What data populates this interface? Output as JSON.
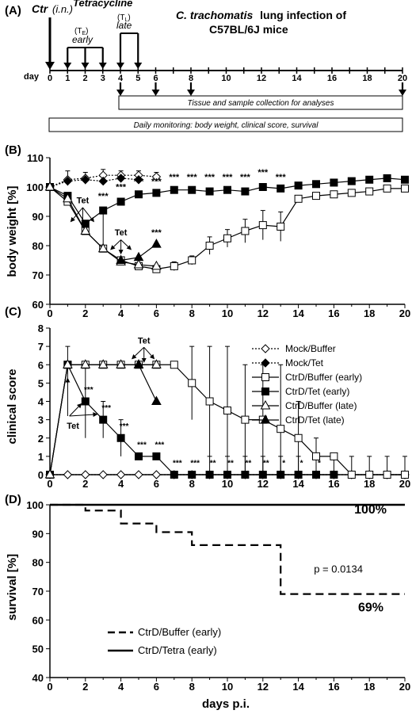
{
  "panel_a": {
    "label": "(A)",
    "ctr": "Ctr",
    "ctr_route": "(i.n.)",
    "tetracycline": "Tetracycline",
    "te": "(T",
    "te_sub": "E",
    "te_close": ")",
    "early": "early",
    "tl": "(T",
    "tl_sub": "L",
    "tl_close": ")",
    "late": "late",
    "title_species": "C. trachomatis",
    "title_rest": "lung infection of",
    "title_line2": "C57BL/6J mice",
    "day_label": "day",
    "days": [
      "0",
      "1",
      "2",
      "3",
      "4",
      "5",
      "6",
      "8",
      "10",
      "12",
      "14",
      "16",
      "18",
      "20"
    ],
    "box1": "Tissue and sample collection for analyses",
    "box2": "Daily monitoring:  body weight, clinical score, survival"
  },
  "chart_data": [
    {
      "panel": "(B)",
      "type": "line",
      "ylabel": "body weight [%]",
      "xlim": [
        0,
        20
      ],
      "ylim": [
        60,
        110
      ],
      "xticks": [
        "0",
        "2",
        "4",
        "6",
        "8",
        "10",
        "12",
        "14",
        "16",
        "18",
        "20"
      ],
      "yticks": [
        "60",
        "70",
        "80",
        "90",
        "100",
        "110"
      ],
      "series": [
        {
          "marker": "diamond-open",
          "line": "dotted",
          "x": [
            0,
            1,
            2,
            3,
            4,
            5,
            6
          ],
          "y": [
            100,
            102.5,
            103,
            104,
            104,
            104,
            103.5
          ]
        },
        {
          "marker": "diamond-filled",
          "line": "dotted",
          "x": [
            0,
            1,
            2,
            3,
            4,
            5
          ],
          "y": [
            100,
            102,
            102.5,
            102,
            103,
            102.5
          ]
        },
        {
          "marker": "square-open",
          "line": "solid",
          "x": [
            0,
            1,
            2,
            3,
            4,
            5,
            6,
            7,
            8,
            9,
            10,
            11,
            12,
            13,
            14,
            15,
            16,
            17,
            18,
            19,
            20
          ],
          "y": [
            100,
            95,
            85,
            79,
            75,
            73,
            72,
            73,
            75,
            80,
            82.5,
            85,
            87,
            86.5,
            96,
            97,
            97.5,
            98,
            98.5,
            99.5,
            99.5
          ]
        },
        {
          "marker": "square-filled",
          "line": "solid",
          "x": [
            0,
            1,
            2,
            3,
            4,
            5,
            6,
            7,
            8,
            9,
            10,
            11,
            12,
            13,
            14,
            15,
            16,
            17,
            18,
            19,
            20
          ],
          "y": [
            100,
            97,
            87.5,
            92,
            95,
            97.5,
            98,
            99,
            99,
            98.5,
            99,
            98.5,
            100,
            99.5,
            100.5,
            101,
            101.5,
            102,
            102.5,
            103,
            102.5
          ]
        },
        {
          "marker": "triangle-open",
          "line": "solid",
          "x": [
            0,
            1,
            2,
            3,
            4,
            5,
            6
          ],
          "y": [
            100,
            96,
            85,
            79,
            74.5,
            73.5,
            73
          ]
        },
        {
          "marker": "triangle-filled",
          "line": "solid",
          "x": [
            4,
            5,
            6
          ],
          "y": [
            75,
            76,
            80.5
          ]
        }
      ],
      "stars": [
        {
          "x": 3,
          "y": 96,
          "t": "***"
        },
        {
          "x": 4,
          "y": 99,
          "t": "***"
        },
        {
          "x": 5,
          "y": 101,
          "t": "***"
        },
        {
          "x": 6,
          "y": 101,
          "t": "***"
        },
        {
          "x": 7,
          "y": 102.5,
          "t": "***"
        },
        {
          "x": 8,
          "y": 102.5,
          "t": "***"
        },
        {
          "x": 9,
          "y": 102.5,
          "t": "***"
        },
        {
          "x": 10,
          "y": 102.5,
          "t": "***"
        },
        {
          "x": 11,
          "y": 102.5,
          "t": "***"
        },
        {
          "x": 12,
          "y": 104,
          "t": "***"
        },
        {
          "x": 13,
          "y": 102.5,
          "t": "***"
        },
        {
          "x": 6,
          "y": 83.5,
          "t": "***"
        }
      ],
      "annotations": [
        "Tet",
        "Tet"
      ]
    },
    {
      "panel": "(C)",
      "type": "line",
      "ylabel": "clinical score",
      "xlim": [
        0,
        20
      ],
      "ylim": [
        0,
        8
      ],
      "xticks": [
        "0",
        "2",
        "4",
        "6",
        "8",
        "10",
        "12",
        "14",
        "16",
        "18",
        "20"
      ],
      "yticks": [
        "0",
        "1",
        "2",
        "3",
        "4",
        "5",
        "6",
        "7",
        "8"
      ],
      "legend": [
        "Mock/Buffer",
        "Mock/Tet",
        "CtrD/Buffer (early)",
        "CtrD/Tet (early)",
        "CtrD/Buffer (late)",
        "CtrD/Tet (late)"
      ],
      "series": [
        {
          "name": "Mock/Buffer",
          "marker": "diamond-open",
          "line": "dotted",
          "x": [
            0,
            1,
            2,
            3,
            4,
            5,
            6,
            7,
            8,
            9,
            10,
            11,
            12,
            13,
            14,
            15,
            16,
            17,
            18,
            19,
            20
          ],
          "y": [
            0,
            0,
            0,
            0,
            0,
            0,
            0,
            0,
            0,
            0,
            0,
            0,
            0,
            0,
            0,
            0,
            0,
            0,
            0,
            0,
            0
          ]
        },
        {
          "name": "CtrD/Buffer (early)",
          "marker": "square-open",
          "line": "solid",
          "x": [
            0,
            1,
            2,
            3,
            4,
            5,
            6,
            7,
            8,
            9,
            10,
            11,
            12,
            13,
            14,
            15,
            16,
            17,
            18,
            19,
            20
          ],
          "y": [
            0,
            6,
            6,
            6,
            6,
            6,
            6,
            6,
            5,
            4,
            3.5,
            3,
            3,
            2.5,
            2,
            1,
            1,
            0,
            0,
            0,
            0
          ]
        },
        {
          "name": "CtrD/Tet (early)",
          "marker": "square-filled",
          "line": "solid",
          "x": [
            0,
            1,
            2,
            3,
            4,
            5,
            6,
            7,
            8,
            9,
            10,
            11,
            12,
            13,
            14,
            15,
            16
          ],
          "y": [
            0,
            6,
            4,
            3,
            2,
            1,
            1,
            0,
            0,
            0,
            0,
            0,
            0,
            0,
            0,
            0,
            0
          ]
        },
        {
          "name": "CtrD/Buffer (late)",
          "marker": "triangle-open",
          "line": "solid",
          "x": [
            0,
            1,
            2,
            3,
            4,
            5,
            6
          ],
          "y": [
            0,
            6,
            6,
            6,
            6,
            6,
            6
          ]
        },
        {
          "name": "CtrD/Tet (late)",
          "marker": "triangle-filled",
          "line": "solid",
          "x": [
            5,
            6
          ],
          "y": [
            6,
            4
          ]
        }
      ],
      "stars": [
        {
          "x": 2,
          "y": 4.5,
          "t": "***"
        },
        {
          "x": 3,
          "y": 3.5,
          "t": "***"
        },
        {
          "x": 4,
          "y": 2.5,
          "t": "***"
        },
        {
          "x": 5,
          "y": 1.5,
          "t": "***"
        },
        {
          "x": 6,
          "y": 1.5,
          "t": "***"
        },
        {
          "x": 7,
          "y": 0.5,
          "t": "***"
        },
        {
          "x": 8,
          "y": 0.5,
          "t": "***"
        },
        {
          "x": 9,
          "y": 0.5,
          "t": "**"
        },
        {
          "x": 10,
          "y": 0.5,
          "t": "**"
        },
        {
          "x": 11,
          "y": 0.5,
          "t": "**"
        },
        {
          "x": 12,
          "y": 0.5,
          "t": "**"
        },
        {
          "x": 13,
          "y": 0.5,
          "t": "*"
        },
        {
          "x": 14,
          "y": 0.5,
          "t": "*"
        },
        {
          "x": 15,
          "y": 0.5,
          "t": "*"
        }
      ],
      "annotations": [
        "Tet",
        "Tet"
      ]
    },
    {
      "panel": "(D)",
      "type": "line",
      "ylabel": "survival [%]",
      "xlabel": "days p.i.",
      "xlim": [
        0,
        20
      ],
      "ylim": [
        40,
        100
      ],
      "xticks": [
        "0",
        "2",
        "4",
        "6",
        "8",
        "10",
        "12",
        "14",
        "16",
        "18",
        "20"
      ],
      "yticks": [
        "40",
        "50",
        "60",
        "70",
        "80",
        "90",
        "100"
      ],
      "legend": [
        "CtrD/Buffer (early)",
        "CtrD/Tetra (early)"
      ],
      "series": [
        {
          "name": "CtrD/Buffer (early)",
          "line": "dashed",
          "step": true,
          "x": [
            0,
            2,
            4,
            6,
            8,
            13,
            20
          ],
          "y": [
            100,
            98,
            93.5,
            90.5,
            86,
            69,
            69
          ]
        },
        {
          "name": "CtrD/Tetra (early)",
          "line": "solid",
          "step": true,
          "x": [
            0,
            20
          ],
          "y": [
            100,
            100
          ]
        }
      ],
      "labels": {
        "top": "100%",
        "bottom": "69%",
        "p": "p = 0.0134"
      }
    }
  ]
}
